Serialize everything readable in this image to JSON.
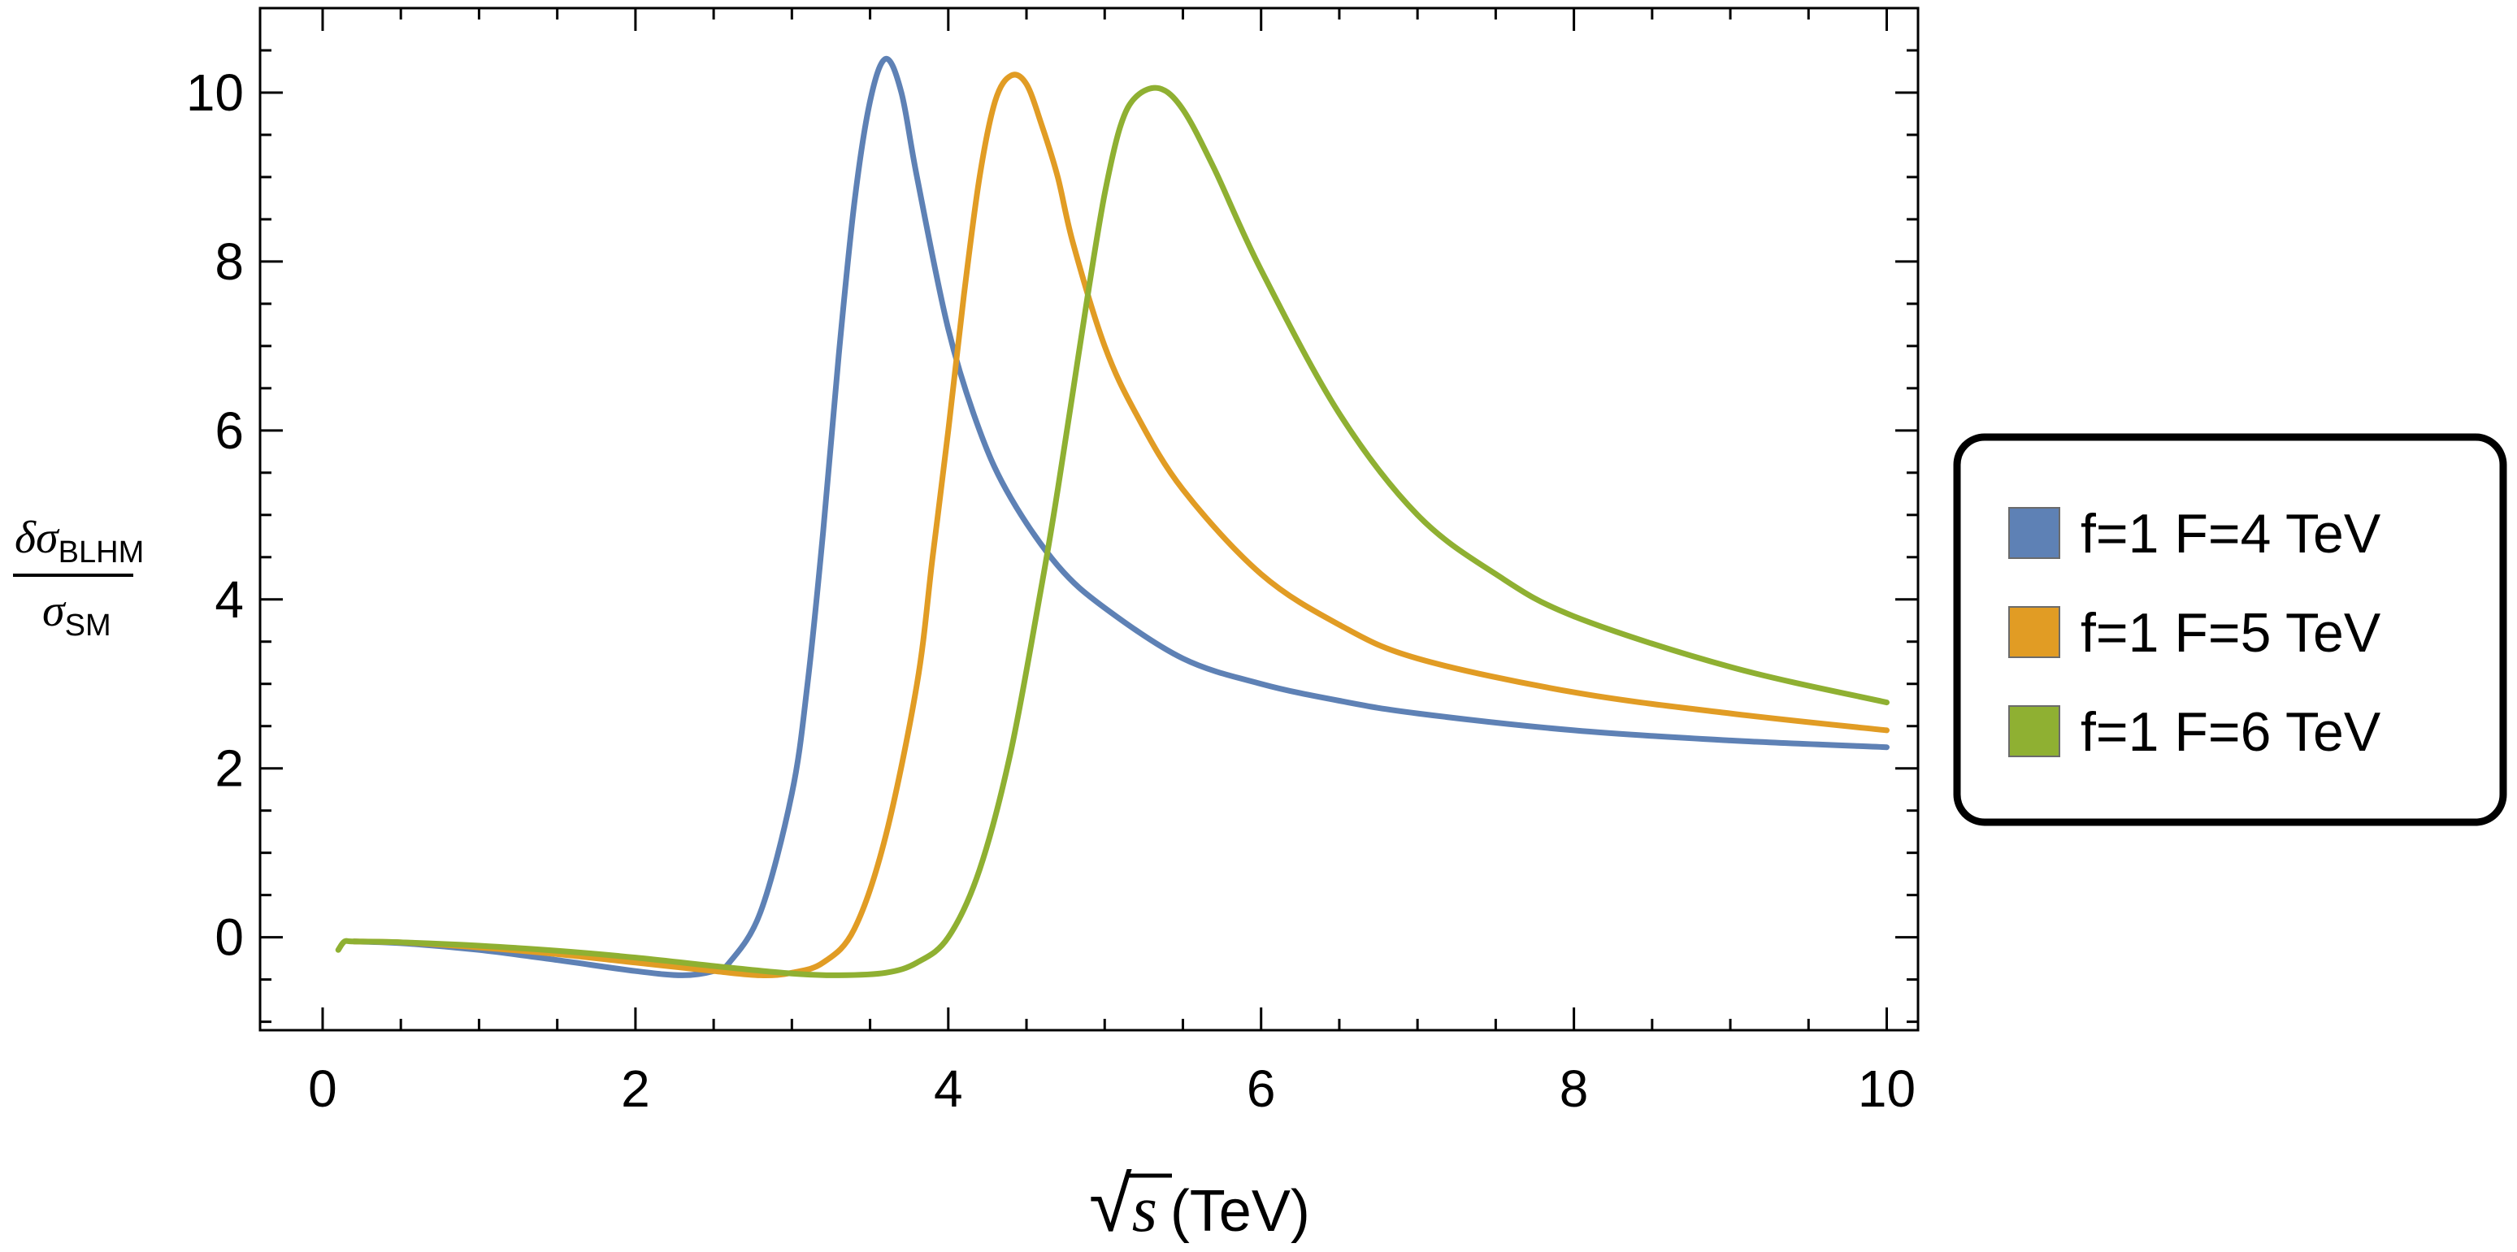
{
  "chart_data": {
    "type": "line",
    "xlabel": {
      "radical": "√",
      "var": "s",
      "unit": "(TeV)"
    },
    "ylabel": {
      "num_delta": "δ",
      "num_sigma": "σ",
      "num_sub": "BLHM",
      "den_sigma": "σ",
      "den_sub": "SM"
    },
    "xlim": [
      -0.4,
      10.2
    ],
    "ylim": [
      -1.1,
      11.0
    ],
    "xticks_major": [
      0,
      2,
      4,
      6,
      8,
      10
    ],
    "xtick_labels": [
      "0",
      "2",
      "4",
      "6",
      "8",
      "10"
    ],
    "yticks_major": [
      0,
      2,
      4,
      6,
      8,
      10
    ],
    "ytick_labels": [
      "0",
      "2",
      "4",
      "6",
      "8",
      "10"
    ],
    "grid": false,
    "legend_position": "right",
    "series": [
      {
        "name": "f=1 F=4 TeV",
        "color": "#5e81b5",
        "x": [
          0.2,
          0.5,
          1.0,
          1.5,
          2.0,
          2.3,
          2.5,
          2.6,
          2.8,
          3.0,
          3.1,
          3.2,
          3.3,
          3.4,
          3.5,
          3.6,
          3.7,
          3.8,
          4.0,
          4.2,
          4.4,
          4.7,
          5.0,
          5.5,
          6.0,
          6.5,
          7.0,
          8.0,
          9.0,
          10.0
        ],
        "y": [
          -0.05,
          -0.07,
          -0.15,
          -0.27,
          -0.4,
          -0.45,
          -0.4,
          -0.3,
          0.3,
          1.7,
          3.0,
          4.8,
          6.9,
          8.7,
          9.9,
          10.4,
          10.0,
          9.0,
          7.2,
          6.0,
          5.2,
          4.4,
          3.9,
          3.3,
          3.0,
          2.8,
          2.65,
          2.45,
          2.33,
          2.25
        ]
      },
      {
        "name": "f=1 F=5 TeV",
        "color": "#e19c24",
        "x": [
          0.2,
          0.5,
          1.0,
          1.5,
          2.0,
          2.5,
          2.8,
          3.0,
          3.2,
          3.4,
          3.6,
          3.8,
          3.9,
          4.0,
          4.1,
          4.2,
          4.3,
          4.4,
          4.5,
          4.6,
          4.7,
          4.8,
          5.0,
          5.2,
          5.5,
          6.0,
          6.5,
          7.0,
          8.0,
          9.0,
          10.0
        ],
        "y": [
          -0.05,
          -0.06,
          -0.12,
          -0.2,
          -0.3,
          -0.4,
          -0.45,
          -0.42,
          -0.3,
          0.1,
          1.2,
          3.0,
          4.5,
          6.0,
          7.6,
          9.0,
          9.9,
          10.2,
          10.1,
          9.6,
          9.0,
          8.2,
          7.0,
          6.2,
          5.3,
          4.3,
          3.7,
          3.3,
          2.9,
          2.65,
          2.45
        ]
      },
      {
        "name": "f=1 F=6 TeV",
        "color": "#8fb032",
        "x": [
          0.1,
          0.14,
          0.2,
          0.5,
          1.0,
          1.5,
          2.0,
          2.5,
          3.0,
          3.3,
          3.6,
          3.8,
          4.0,
          4.2,
          4.4,
          4.6,
          4.7,
          4.8,
          4.9,
          5.0,
          5.1,
          5.2,
          5.35,
          5.5,
          5.7,
          6.0,
          6.5,
          7.0,
          7.5,
          8.0,
          9.0,
          10.0
        ],
        "y": [
          -0.15,
          -0.05,
          -0.05,
          -0.06,
          -0.1,
          -0.16,
          -0.24,
          -0.34,
          -0.43,
          -0.45,
          -0.42,
          -0.3,
          0.0,
          0.8,
          2.2,
          4.2,
          5.3,
          6.5,
          7.7,
          8.8,
          9.6,
          9.95,
          10.05,
          9.8,
          9.1,
          7.9,
          6.2,
          5.0,
          4.3,
          3.8,
          3.2,
          2.78
        ]
      }
    ]
  }
}
